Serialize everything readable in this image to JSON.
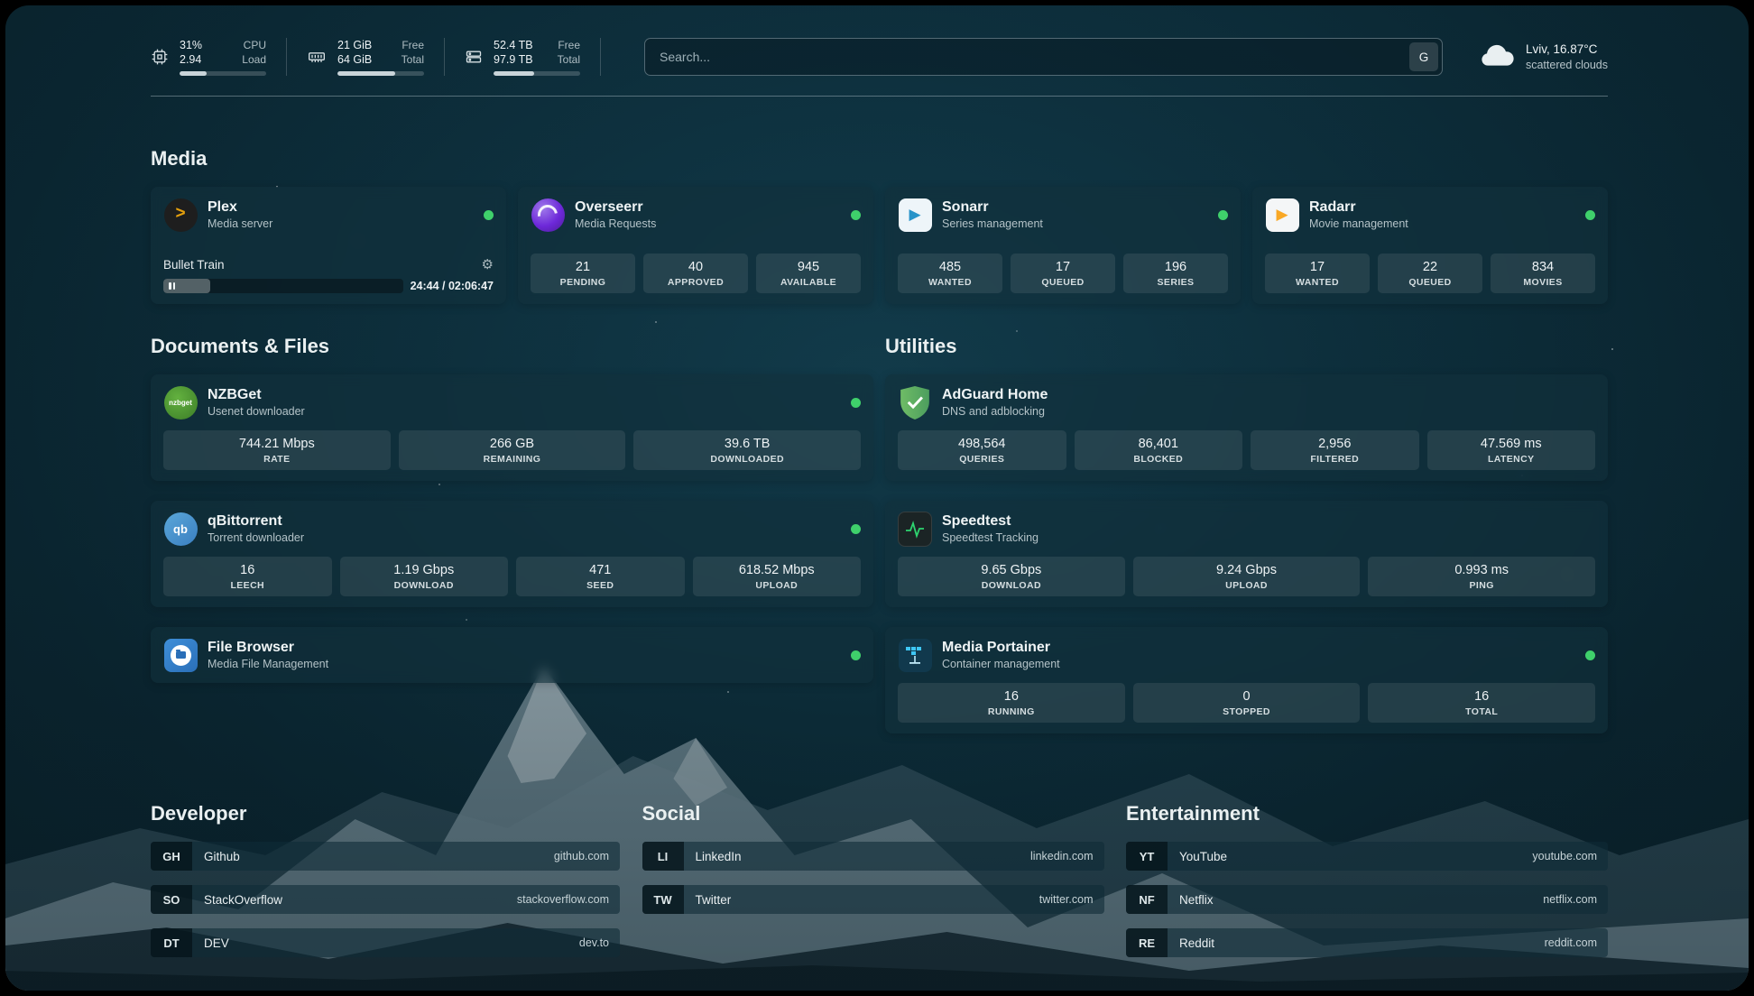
{
  "topbar": {
    "cpu": {
      "value_top": "31%",
      "label_top": "CPU",
      "value_bottom": "2.94",
      "label_bottom": "Load",
      "bar_percent": 31
    },
    "memory": {
      "value_top": "21 GiB",
      "label_top": "Free",
      "value_bottom": "64 GiB",
      "label_bottom": "Total",
      "bar_percent": 67
    },
    "disk": {
      "value_top": "52.4 TB",
      "label_top": "Free",
      "value_bottom": "97.9 TB",
      "label_bottom": "Total",
      "bar_percent": 47
    },
    "search": {
      "placeholder": "Search...",
      "engine_button": "G"
    },
    "weather": {
      "location": "Lviv, 16.87°C",
      "condition": "scattered clouds"
    }
  },
  "sections": {
    "media": "Media",
    "documents": "Documents & Files",
    "utilities": "Utilities",
    "developer": "Developer",
    "social": "Social",
    "entertainment": "Entertainment"
  },
  "services": {
    "plex": {
      "name": "Plex",
      "desc": "Media server",
      "now_playing": "Bullet Train",
      "time": "24:44 / 02:06:47",
      "progress_percent": 19.5
    },
    "overseerr": {
      "name": "Overseerr",
      "desc": "Media Requests",
      "stats": [
        {
          "value": "21",
          "label": "PENDING"
        },
        {
          "value": "40",
          "label": "APPROVED"
        },
        {
          "value": "945",
          "label": "AVAILABLE"
        }
      ]
    },
    "sonarr": {
      "name": "Sonarr",
      "desc": "Series management",
      "stats": [
        {
          "value": "485",
          "label": "WANTED"
        },
        {
          "value": "17",
          "label": "QUEUED"
        },
        {
          "value": "196",
          "label": "SERIES"
        }
      ]
    },
    "radarr": {
      "name": "Radarr",
      "desc": "Movie management",
      "stats": [
        {
          "value": "17",
          "label": "WANTED"
        },
        {
          "value": "22",
          "label": "QUEUED"
        },
        {
          "value": "834",
          "label": "MOVIES"
        }
      ]
    },
    "nzbget": {
      "name": "NZBGet",
      "desc": "Usenet downloader",
      "stats": [
        {
          "value": "744.21 Mbps",
          "label": "RATE"
        },
        {
          "value": "266 GB",
          "label": "REMAINING"
        },
        {
          "value": "39.6 TB",
          "label": "DOWNLOADED"
        }
      ]
    },
    "qbittorrent": {
      "name": "qBittorrent",
      "desc": "Torrent downloader",
      "stats": [
        {
          "value": "16",
          "label": "LEECH"
        },
        {
          "value": "1.19 Gbps",
          "label": "DOWNLOAD"
        },
        {
          "value": "471",
          "label": "SEED"
        },
        {
          "value": "618.52 Mbps",
          "label": "UPLOAD"
        }
      ]
    },
    "filebrowser": {
      "name": "File Browser",
      "desc": "Media File Management"
    },
    "adguard": {
      "name": "AdGuard Home",
      "desc": "DNS and adblocking",
      "stats": [
        {
          "value": "498,564",
          "label": "QUERIES"
        },
        {
          "value": "86,401",
          "label": "BLOCKED"
        },
        {
          "value": "2,956",
          "label": "FILTERED"
        },
        {
          "value": "47.569 ms",
          "label": "LATENCY"
        }
      ]
    },
    "speedtest": {
      "name": "Speedtest",
      "desc": "Speedtest Tracking",
      "stats": [
        {
          "value": "9.65 Gbps",
          "label": "DOWNLOAD"
        },
        {
          "value": "9.24 Gbps",
          "label": "UPLOAD"
        },
        {
          "value": "0.993 ms",
          "label": "PING"
        }
      ]
    },
    "portainer": {
      "name": "Media Portainer",
      "desc": "Container management",
      "stats": [
        {
          "value": "16",
          "label": "RUNNING"
        },
        {
          "value": "0",
          "label": "STOPPED"
        },
        {
          "value": "16",
          "label": "TOTAL"
        }
      ]
    }
  },
  "bookmarks": {
    "developer": [
      {
        "abbr": "GH",
        "name": "Github",
        "url": "github.com"
      },
      {
        "abbr": "SO",
        "name": "StackOverflow",
        "url": "stackoverflow.com"
      },
      {
        "abbr": "DT",
        "name": "DEV",
        "url": "dev.to"
      }
    ],
    "social": [
      {
        "abbr": "LI",
        "name": "LinkedIn",
        "url": "linkedin.com"
      },
      {
        "abbr": "TW",
        "name": "Twitter",
        "url": "twitter.com"
      }
    ],
    "entertainment": [
      {
        "abbr": "YT",
        "name": "YouTube",
        "url": "youtube.com"
      },
      {
        "abbr": "NF",
        "name": "Netflix",
        "url": "netflix.com"
      },
      {
        "abbr": "RE",
        "name": "Reddit",
        "url": "reddit.com"
      }
    ]
  },
  "colors": {
    "status_online": "#3fd06b",
    "plex_accent": "#e5a00d",
    "adguard_green": "#5aa75e",
    "speedtest_green": "#2dd36f"
  }
}
